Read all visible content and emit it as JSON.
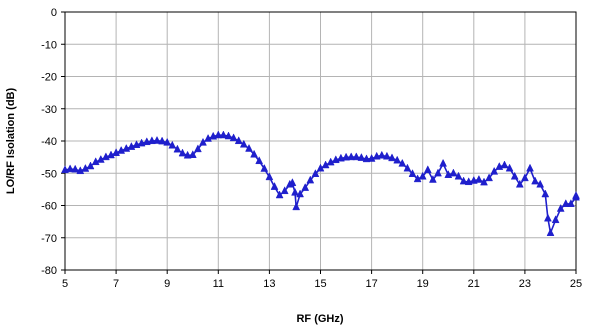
{
  "chart_data": {
    "type": "line",
    "title": "",
    "xlabel": "RF (GHz)",
    "ylabel": "LO/RF Isolation (dB)",
    "xlim": [
      5,
      25
    ],
    "ylim": [
      -80,
      0
    ],
    "x_ticks": [
      5,
      7,
      9,
      11,
      13,
      15,
      17,
      19,
      21,
      23,
      25
    ],
    "y_ticks": [
      0,
      -10,
      -20,
      -30,
      -40,
      -50,
      -60,
      -70,
      -80
    ],
    "x_tick_labels": [
      "5",
      "7",
      "9",
      "11",
      "13",
      "15",
      "17",
      "19",
      "21",
      "23",
      "25"
    ],
    "y_tick_labels": [
      "0",
      "-10",
      "-20",
      "-30",
      "-40",
      "-50",
      "-60",
      "-70",
      "-80"
    ],
    "grid": true,
    "legend": "none",
    "marker": "triangle",
    "series_color": "#1f1fcc",
    "series": [
      {
        "points": [
          [
            5.0,
            -49.0
          ],
          [
            5.2,
            -48.7
          ],
          [
            5.4,
            -48.8
          ],
          [
            5.6,
            -49.3
          ],
          [
            5.8,
            -48.6
          ],
          [
            6.0,
            -47.8
          ],
          [
            6.2,
            -46.5
          ],
          [
            6.4,
            -45.8
          ],
          [
            6.6,
            -45.0
          ],
          [
            6.8,
            -44.4
          ],
          [
            7.0,
            -43.7
          ],
          [
            7.2,
            -43.0
          ],
          [
            7.4,
            -42.4
          ],
          [
            7.6,
            -41.8
          ],
          [
            7.8,
            -41.2
          ],
          [
            8.0,
            -40.7
          ],
          [
            8.2,
            -40.3
          ],
          [
            8.4,
            -40.0
          ],
          [
            8.6,
            -39.9
          ],
          [
            8.8,
            -40.1
          ],
          [
            9.0,
            -40.5
          ],
          [
            9.2,
            -41.4
          ],
          [
            9.4,
            -42.6
          ],
          [
            9.6,
            -43.8
          ],
          [
            9.8,
            -44.5
          ],
          [
            10.0,
            -44.3
          ],
          [
            10.2,
            -42.5
          ],
          [
            10.4,
            -40.5
          ],
          [
            10.6,
            -39.3
          ],
          [
            10.8,
            -38.6
          ],
          [
            11.0,
            -38.2
          ],
          [
            11.2,
            -38.2
          ],
          [
            11.4,
            -38.5
          ],
          [
            11.6,
            -39.1
          ],
          [
            11.8,
            -40.0
          ],
          [
            12.0,
            -41.1
          ],
          [
            12.2,
            -42.4
          ],
          [
            12.4,
            -44.2
          ],
          [
            12.6,
            -46.2
          ],
          [
            12.8,
            -48.6
          ],
          [
            13.0,
            -51.2
          ],
          [
            13.2,
            -54.2
          ],
          [
            13.4,
            -56.8
          ],
          [
            13.6,
            -55.5
          ],
          [
            13.8,
            -53.5
          ],
          [
            13.9,
            -53.0
          ],
          [
            14.0,
            -56.0
          ],
          [
            14.05,
            -60.5
          ],
          [
            14.2,
            -56.5
          ],
          [
            14.4,
            -54.5
          ],
          [
            14.6,
            -52.2
          ],
          [
            14.8,
            -50.2
          ],
          [
            15.0,
            -48.5
          ],
          [
            15.2,
            -47.5
          ],
          [
            15.4,
            -46.6
          ],
          [
            15.6,
            -45.9
          ],
          [
            15.8,
            -45.4
          ],
          [
            16.0,
            -45.1
          ],
          [
            16.2,
            -45.0
          ],
          [
            16.4,
            -45.0
          ],
          [
            16.6,
            -45.2
          ],
          [
            16.8,
            -45.6
          ],
          [
            17.0,
            -45.5
          ],
          [
            17.2,
            -44.8
          ],
          [
            17.4,
            -44.5
          ],
          [
            17.6,
            -44.8
          ],
          [
            17.8,
            -45.3
          ],
          [
            18.0,
            -46.0
          ],
          [
            18.2,
            -47.0
          ],
          [
            18.4,
            -48.5
          ],
          [
            18.6,
            -50.2
          ],
          [
            18.8,
            -51.8
          ],
          [
            19.0,
            -51.0
          ],
          [
            19.2,
            -49.0
          ],
          [
            19.4,
            -52.0
          ],
          [
            19.6,
            -50.0
          ],
          [
            19.8,
            -47.0
          ],
          [
            20.0,
            -50.5
          ],
          [
            20.2,
            -50.0
          ],
          [
            20.4,
            -51.0
          ],
          [
            20.6,
            -52.5
          ],
          [
            20.8,
            -52.7
          ],
          [
            21.0,
            -52.3
          ],
          [
            21.2,
            -52.0
          ],
          [
            21.4,
            -52.8
          ],
          [
            21.6,
            -51.5
          ],
          [
            21.8,
            -49.5
          ],
          [
            22.0,
            -48.0
          ],
          [
            22.2,
            -47.5
          ],
          [
            22.4,
            -48.5
          ],
          [
            22.6,
            -51.0
          ],
          [
            22.8,
            -53.5
          ],
          [
            23.0,
            -51.5
          ],
          [
            23.2,
            -48.5
          ],
          [
            23.4,
            -52.5
          ],
          [
            23.6,
            -53.5
          ],
          [
            23.8,
            -56.5
          ],
          [
            23.9,
            -64.0
          ],
          [
            24.0,
            -68.5
          ],
          [
            24.2,
            -64.5
          ],
          [
            24.4,
            -61.0
          ],
          [
            24.6,
            -59.5
          ],
          [
            24.8,
            -59.5
          ],
          [
            25.0,
            -57.5
          ],
          [
            25.2,
            -57.0
          ]
        ]
      }
    ]
  }
}
